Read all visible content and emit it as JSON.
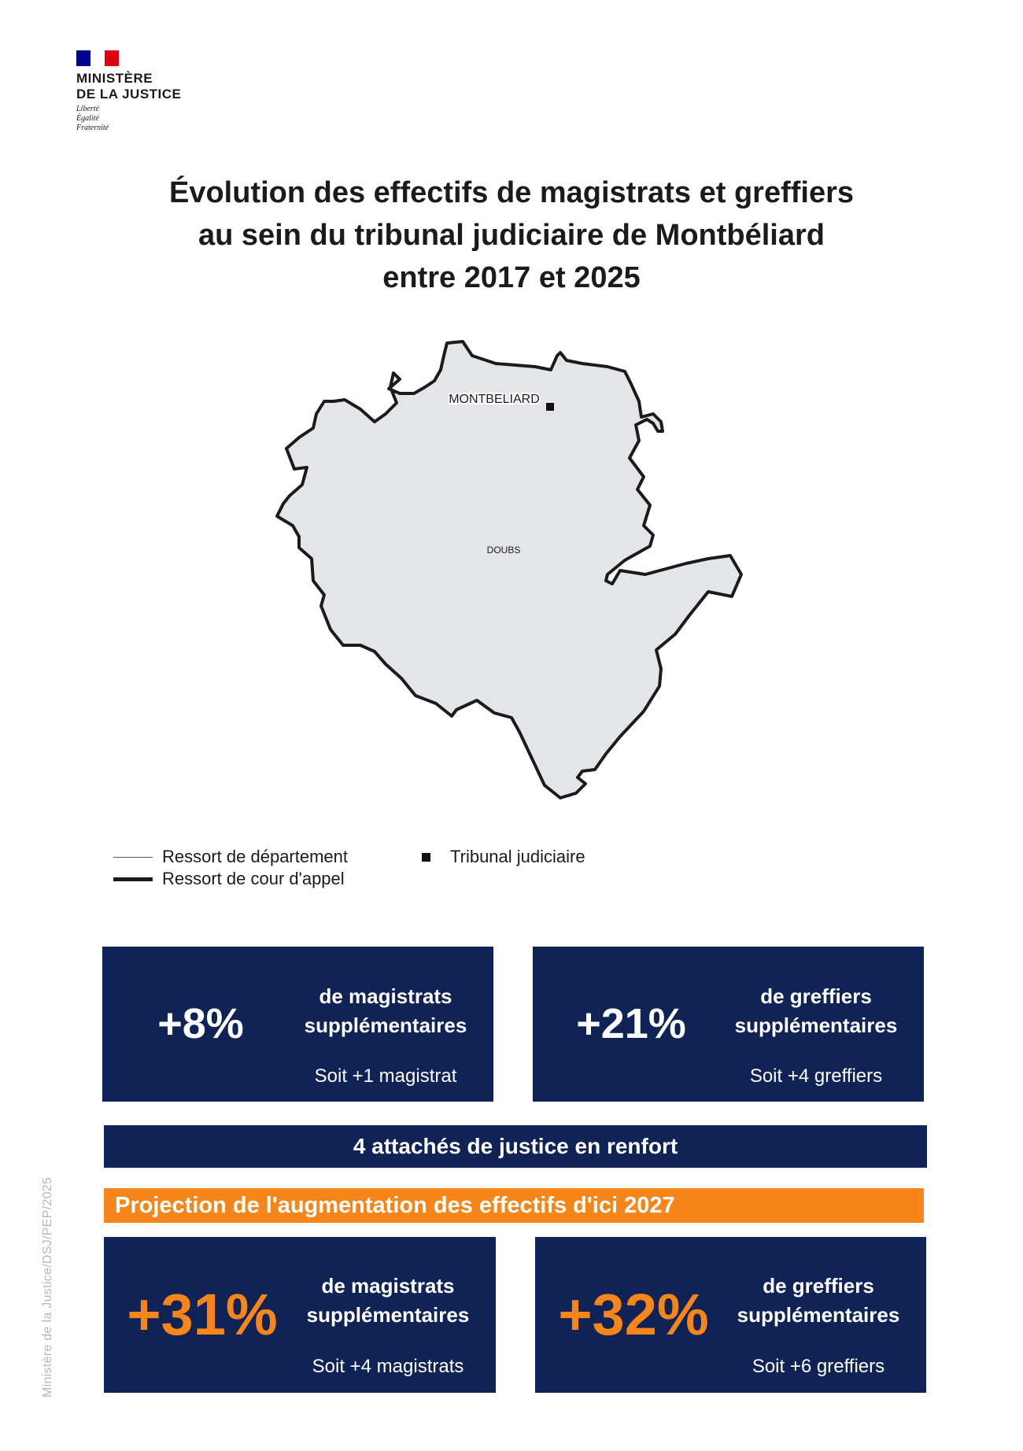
{
  "logo": {
    "name_line1": "MINISTÈRE",
    "name_line2": "DE LA JUSTICE",
    "motto_1": "Liberté",
    "motto_2": "Égalité",
    "motto_3": "Fraternité"
  },
  "title": {
    "line1": "Évolution des effectifs de magistrats et greffiers",
    "line2": "au sein du tribunal judiciaire de Montbéliard",
    "line3": "entre 2017 et 2025"
  },
  "map": {
    "region_fill": "#e4e5e8",
    "labels": {
      "city": "MONTBELIARD",
      "department": "DOUBS"
    }
  },
  "legend": {
    "department_boundary": "Ressort de département",
    "appeal_court_boundary": "Ressort de cour d'appel",
    "court_marker": "Tribunal judiciaire"
  },
  "stats_2025": {
    "magistrats": {
      "value": "+8%",
      "desc_line1": "de magistrats",
      "desc_line2": "supplémentaires",
      "detail": "Soit +1 magistrat"
    },
    "greffiers": {
      "value": "+21%",
      "desc_line1": "de greffiers",
      "desc_line2": "supplémentaires",
      "detail": "Soit +4 greffiers"
    }
  },
  "renfort": "4 attachés de justice en renfort",
  "projection": {
    "title": "Projection de l'augmentation des effectifs d'ici 2027",
    "magistrats": {
      "value": "+31%",
      "desc_line1": "de magistrats",
      "desc_line2": "supplémentaires",
      "detail": "Soit +4 magistrats"
    },
    "greffiers": {
      "value": "+32%",
      "desc_line1": "de greffiers",
      "desc_line2": "supplémentaires",
      "detail": "Soit +6 greffiers"
    }
  },
  "credit": "Ministère de la Justice/DSJ/PEP/2025",
  "colors": {
    "navy": "#0f2356",
    "orange": "#f7861a",
    "white": "#ffffff"
  }
}
